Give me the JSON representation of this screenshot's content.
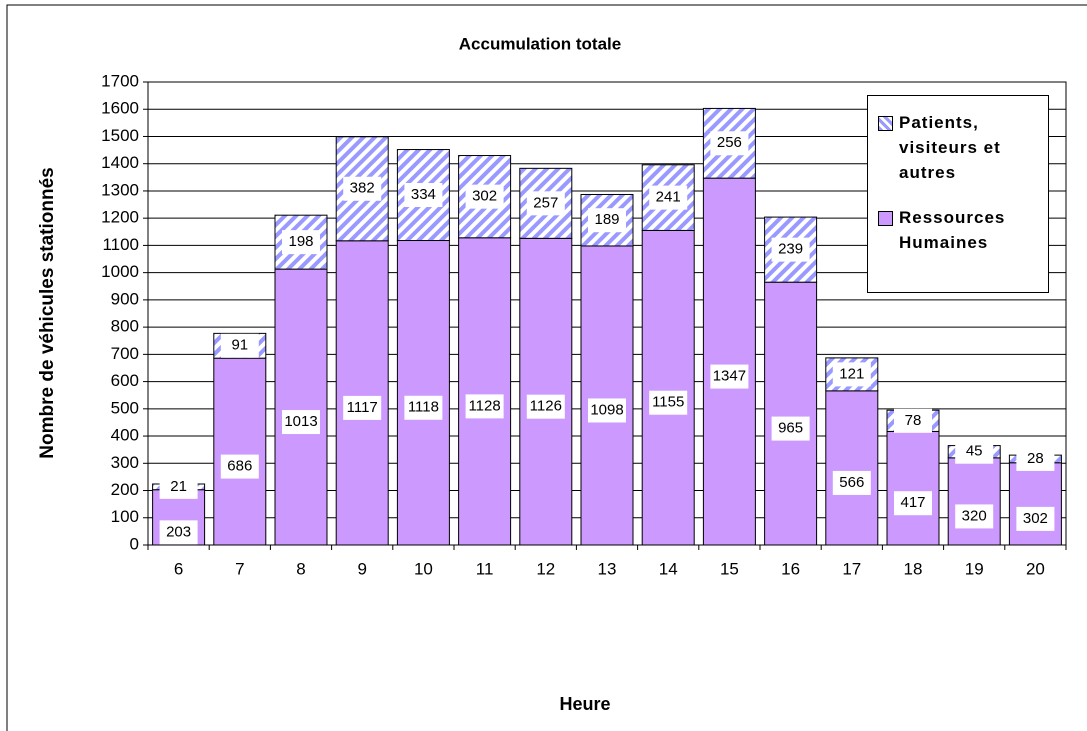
{
  "chart_data": {
    "type": "stacked_bar",
    "title": "Accumulation totale",
    "x_label": "Heure",
    "y_label": "Nombre de véhicules stationnés",
    "categories": [
      "6",
      "7",
      "8",
      "9",
      "10",
      "11",
      "12",
      "13",
      "14",
      "15",
      "16",
      "17",
      "18",
      "19",
      "20"
    ],
    "series": [
      {
        "name": "Ressources Humaines",
        "color": "#cc99ff",
        "values": [
          203,
          686,
          1013,
          1117,
          1118,
          1128,
          1126,
          1098,
          1155,
          1347,
          965,
          566,
          417,
          320,
          302
        ]
      },
      {
        "name": "Patients, visiteurs et autres",
        "color": "#9999ff",
        "values": [
          21,
          91,
          198,
          382,
          334,
          302,
          257,
          189,
          241,
          256,
          239,
          121,
          78,
          45,
          28
        ]
      }
    ],
    "ylim": [
      0,
      1700
    ],
    "yticks": [
      0,
      100,
      200,
      300,
      400,
      500,
      600,
      700,
      800,
      900,
      1000,
      1100,
      1200,
      1300,
      1400,
      1500,
      1600,
      1700
    ],
    "grid": true,
    "legend": "upper right"
  }
}
